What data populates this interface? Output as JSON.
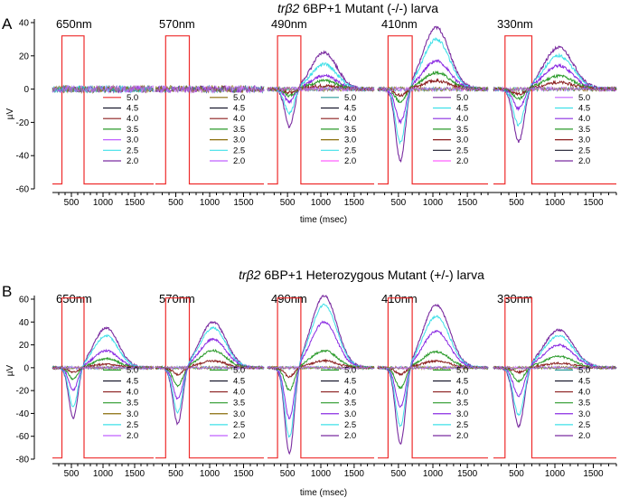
{
  "panels": [
    {
      "letter": "A",
      "title_gene": "trβ2",
      "title_rest": " 6BP+1 Mutant (-/-) larva",
      "ylabel": "µV",
      "xlabel": "time (msec)"
    },
    {
      "letter": "B",
      "title_gene": "trβ2",
      "title_rest": " 6BP+1 Heterozygous Mutant (+/-) larva",
      "ylabel": "µV",
      "xlabel": "time (msec)"
    }
  ],
  "series_colors": {
    "5.0": "#ee2b2b",
    "4.5": "#1a1a2e",
    "4.0": "#8b1e1e",
    "3.5": "#2a9a2a",
    "3.0": "#8a6d0a",
    "2.5": "#c060ff",
    "2.0": "#3fe0e8",
    "1.5": "#7a2ca0"
  },
  "chart_data": [
    {
      "type": "line",
      "panel": "A",
      "title": "trβ2 6BP+1 Mutant (-/-) larva",
      "xlabel": "time (msec)",
      "ylabel": "µV",
      "xlim": [
        200,
        1800
      ],
      "ylim": [
        -60,
        40
      ],
      "xticks": [
        500,
        1000,
        1500
      ],
      "yticks": [
        -60,
        -40,
        -20,
        0,
        20,
        40
      ],
      "stimulus_trace": {
        "baseline": -57,
        "on_level": 32,
        "on": 350,
        "off": 700
      },
      "subplots": [
        {
          "wavelength": "650nm",
          "legend": [
            "5.0",
            "4.5",
            "4.0",
            "3.5",
            "3.0",
            "2.5",
            "2.0"
          ],
          "legend_colors": [
            "#ee2b2b",
            "#1a1a2e",
            "#8b1e1e",
            "#2a9a2a",
            "#c060ff",
            "#3fe0e8",
            "#7a2ca0"
          ],
          "series": [
            {
              "key": "5.0",
              "trough": 0,
              "peak": 0
            },
            {
              "key": "4.5",
              "trough": 0,
              "peak": 0
            }
          ]
        },
        {
          "wavelength": "570nm",
          "legend": [
            "5.0",
            "4.5",
            "4.0",
            "3.5",
            "3.0",
            "2.5",
            "2.0"
          ],
          "legend_colors": [
            "#8a6d0a",
            "#1a1a2e",
            "#8b1e1e",
            "#2a9a2a",
            "#8a6d0a",
            "#3fe0e8",
            "#c060ff"
          ],
          "series": [
            {
              "key": "5.0",
              "trough": 0,
              "peak": 0
            }
          ]
        },
        {
          "wavelength": "490nm",
          "legend": [
            "5.0",
            "4.5",
            "4.0",
            "3.5",
            "3.0",
            "2.5",
            "2.0"
          ],
          "legend_colors": [
            "#2a9a9a",
            "#1a1a2e",
            "#8b1e1e",
            "#2a9a2a",
            "#8a6d0a",
            "#3fe0e8",
            "#ff60ff"
          ],
          "series": [
            {
              "key": "5.0",
              "trough": -23,
              "peak": 22
            },
            {
              "key": "4.5",
              "trough": -15,
              "peak": 15
            },
            {
              "key": "4.0",
              "trough": -8,
              "peak": 8
            },
            {
              "key": "3.5",
              "trough": -4,
              "peak": 5
            },
            {
              "key": "3.0",
              "trough": -2,
              "peak": 2
            }
          ]
        },
        {
          "wavelength": "410nm",
          "legend": [
            "5.0",
            "4.5",
            "4.0",
            "3.5",
            "3.0",
            "2.5",
            "2.0"
          ],
          "legend_colors": [
            "#7a2ca0",
            "#3fe0e8",
            "#8a2be2",
            "#2a9a2a",
            "#8b1e1e",
            "#1a1a2e",
            "#ff60ff"
          ],
          "series": [
            {
              "key": "5.0",
              "trough": -44,
              "peak": 37
            },
            {
              "key": "4.5",
              "trough": -33,
              "peak": 30
            },
            {
              "key": "4.0",
              "trough": -20,
              "peak": 17
            },
            {
              "key": "3.5",
              "trough": -8,
              "peak": 10
            },
            {
              "key": "3.0",
              "trough": -4,
              "peak": 5
            }
          ]
        },
        {
          "wavelength": "330nm",
          "legend": [
            "5.0",
            "4.5",
            "4.0",
            "3.5",
            "3.0",
            "2.5",
            "2.0"
          ],
          "legend_colors": [
            "#c060ff",
            "#3fe0e8",
            "#8a2be2",
            "#2a9a2a",
            "#8b1e1e",
            "#1a1a2e",
            "#7a2ca0"
          ],
          "series": [
            {
              "key": "5.0",
              "trough": -32,
              "peak": 25
            },
            {
              "key": "4.5",
              "trough": -22,
              "peak": 20
            },
            {
              "key": "4.0",
              "trough": -12,
              "peak": 14
            },
            {
              "key": "3.5",
              "trough": -6,
              "peak": 8
            },
            {
              "key": "3.0",
              "trough": -3,
              "peak": 4
            }
          ]
        }
      ]
    },
    {
      "type": "line",
      "panel": "B",
      "title": "trβ2 6BP+1 Heterozygous Mutant (+/-) larva",
      "xlabel": "time (msec)",
      "ylabel": "µV",
      "xlim": [
        200,
        1800
      ],
      "ylim": [
        -80,
        60
      ],
      "xticks": [
        500,
        1000,
        1500
      ],
      "yticks": [
        -80,
        -60,
        -40,
        -20,
        0,
        20,
        40,
        60
      ],
      "stimulus_trace": {
        "baseline": -79,
        "on_level": 61,
        "on": 350,
        "off": 700
      },
      "subplots": [
        {
          "wavelength": "650nm",
          "legend": [
            "5.0",
            "4.5",
            "4.0",
            "3.5",
            "3.0",
            "2.5",
            "2.0"
          ],
          "legend_colors": [
            "#2a9a2a",
            "#1a1a2e",
            "#8b1e1e",
            "#2a9a2a",
            "#8a6d0a",
            "#3fe0e8",
            "#c060ff"
          ],
          "series": [
            {
              "key": "5.0",
              "trough": -45,
              "peak": 35
            },
            {
              "key": "4.5",
              "trough": -35,
              "peak": 28
            },
            {
              "key": "4.0",
              "trough": -20,
              "peak": 15
            },
            {
              "key": "3.5",
              "trough": -10,
              "peak": 8
            },
            {
              "key": "3.0",
              "trough": -4,
              "peak": 3
            }
          ]
        },
        {
          "wavelength": "570nm",
          "legend": [
            "5.0",
            "4.5",
            "4.0",
            "3.5",
            "3.0",
            "2.5",
            "2.0"
          ],
          "legend_colors": [
            "#2a9a2a",
            "#1a1a2e",
            "#8b1e1e",
            "#2a9a2a",
            "#8a6d0a",
            "#3fe0e8",
            "#c060ff"
          ],
          "series": [
            {
              "key": "5.0",
              "trough": -50,
              "peak": 40
            },
            {
              "key": "4.5",
              "trough": -40,
              "peak": 35
            },
            {
              "key": "4.0",
              "trough": -28,
              "peak": 25
            },
            {
              "key": "3.5",
              "trough": -16,
              "peak": 15
            },
            {
              "key": "3.0",
              "trough": -6,
              "peak": 6
            }
          ]
        },
        {
          "wavelength": "490nm",
          "legend": [
            "5.0",
            "4.5",
            "4.0",
            "3.5",
            "3.0",
            "2.5",
            "2.0"
          ],
          "legend_colors": [
            "#2a9a2a",
            "#1a1a2e",
            "#8b1e1e",
            "#2a9a2a",
            "#8a2be2",
            "#3fe0e8",
            "#7a2ca0"
          ],
          "series": [
            {
              "key": "5.0",
              "trough": -76,
              "peak": 63
            },
            {
              "key": "4.5",
              "trough": -62,
              "peak": 55
            },
            {
              "key": "4.0",
              "trough": -45,
              "peak": 40
            },
            {
              "key": "3.5",
              "trough": -20,
              "peak": 15
            },
            {
              "key": "3.0",
              "trough": -8,
              "peak": 6
            }
          ]
        },
        {
          "wavelength": "410nm",
          "legend": [
            "5.0",
            "4.5",
            "4.0",
            "3.5",
            "3.0",
            "2.5",
            "2.0"
          ],
          "legend_colors": [
            "#2a9a2a",
            "#1a1a2e",
            "#8b1e1e",
            "#2a9a2a",
            "#8a2be2",
            "#3fe0e8",
            "#7a2ca0"
          ],
          "series": [
            {
              "key": "5.0",
              "trough": -68,
              "peak": 55
            },
            {
              "key": "4.5",
              "trough": -52,
              "peak": 45
            },
            {
              "key": "4.0",
              "trough": -35,
              "peak": 32
            },
            {
              "key": "3.5",
              "trough": -18,
              "peak": 14
            },
            {
              "key": "3.0",
              "trough": -6,
              "peak": 6
            }
          ]
        },
        {
          "wavelength": "330nm",
          "legend": [
            "5.0",
            "4.5",
            "4.0",
            "3.5",
            "3.0",
            "2.5",
            "2.0"
          ],
          "legend_colors": [
            "#2a9a9a",
            "#1a1a2e",
            "#8b1e1e",
            "#2a9a2a",
            "#8a2be2",
            "#3fe0e8",
            "#7a2ca0"
          ],
          "series": [
            {
              "key": "5.0",
              "trough": -52,
              "peak": 33
            },
            {
              "key": "4.5",
              "trough": -42,
              "peak": 28
            },
            {
              "key": "4.0",
              "trough": -25,
              "peak": 20
            },
            {
              "key": "3.5",
              "trough": -12,
              "peak": 10
            },
            {
              "key": "3.0",
              "trough": -4,
              "peak": 4
            }
          ]
        }
      ]
    }
  ]
}
